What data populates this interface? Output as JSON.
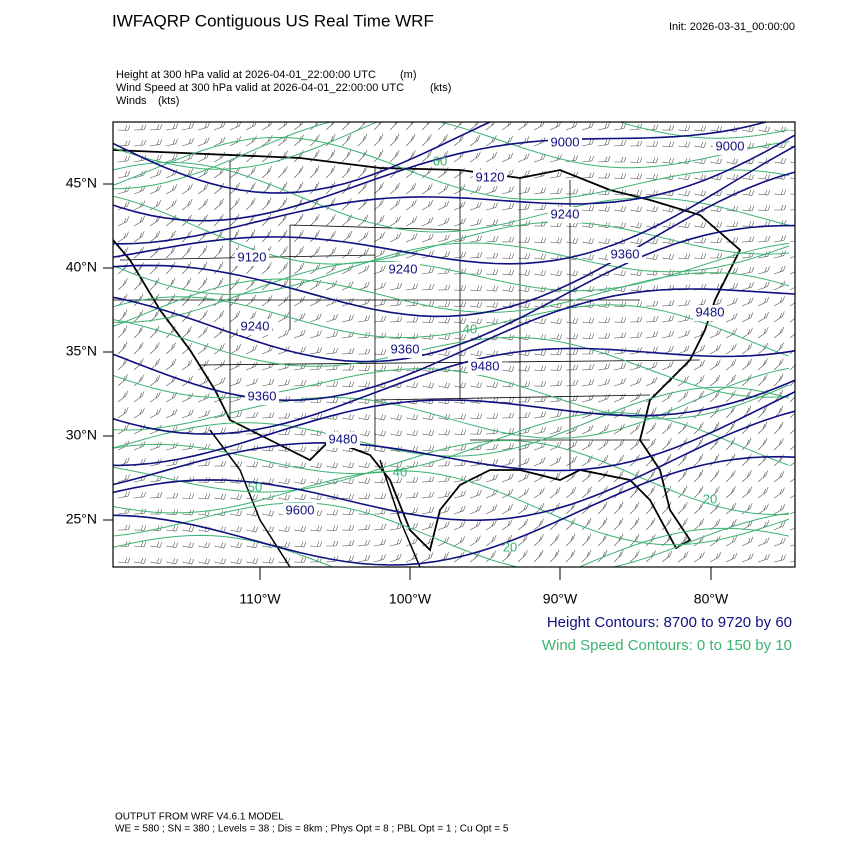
{
  "header": {
    "title": "IWFAQRP Contiguous US Real Time WRF",
    "init": "Init: 2026-03-31_00:00:00"
  },
  "fields": [
    {
      "name": "Height at 300 hPa valid at 2026-04-01_22:00:00 UTC",
      "units": "(m)"
    },
    {
      "name": "Wind Speed at 300 hPa valid at 2026-04-01_22:00:00 UTC",
      "units": "(kts)"
    },
    {
      "name": "Winds",
      "units": "(kts)"
    }
  ],
  "map": {
    "lat_labels": [
      "45°N",
      "40°N",
      "35°N",
      "30°N",
      "25°N"
    ],
    "lon_labels": [
      "110°W",
      "100°W",
      "90°W",
      "80°W"
    ],
    "height_labels": [
      "9000",
      "9000",
      "9120",
      "9120",
      "9240",
      "9240",
      "9240",
      "9360",
      "9360",
      "9360",
      "9480",
      "9480",
      "9480",
      "9600"
    ],
    "wind_labels": [
      "60",
      "50",
      "40",
      "40",
      "20",
      "20"
    ]
  },
  "legend": [
    "Height Contours: 8700 to 9720 by 60",
    "Wind Speed Contours: 0 to 150 by 10"
  ],
  "footer": [
    "OUTPUT FROM WRF V4.6.1 MODEL",
    "WE = 580 ; SN = 380 ; Levels = 38 ; Dis = 8km ; Phys Opt = 8 ; PBL Opt = 1 ; Cu Opt = 5"
  ]
}
